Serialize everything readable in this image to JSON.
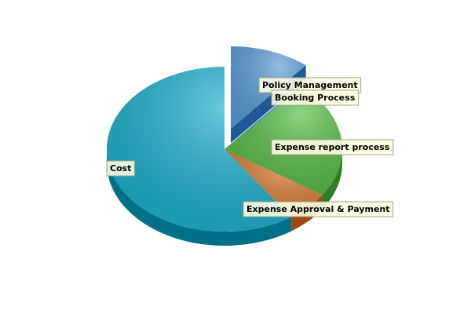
{
  "chart_data": {
    "type": "pie",
    "three_d": true,
    "categories": [
      "Policy Management",
      "Booking Process",
      "Expense report process",
      "Expense Approval & Payment",
      "Cost"
    ],
    "values": [
      11,
      0.4,
      23,
      6,
      59.6
    ],
    "exploded": [
      "Policy Management"
    ],
    "colors": [
      "#5b9bd5",
      "#2d6fb5",
      "#55bb44",
      "#d97a30",
      "#1bb0cc"
    ],
    "side_colors": [
      "#1f5a96",
      "#174a85",
      "#2e7d23",
      "#9a4a12",
      "#007089"
    ],
    "title": "",
    "legend": "none"
  }
}
